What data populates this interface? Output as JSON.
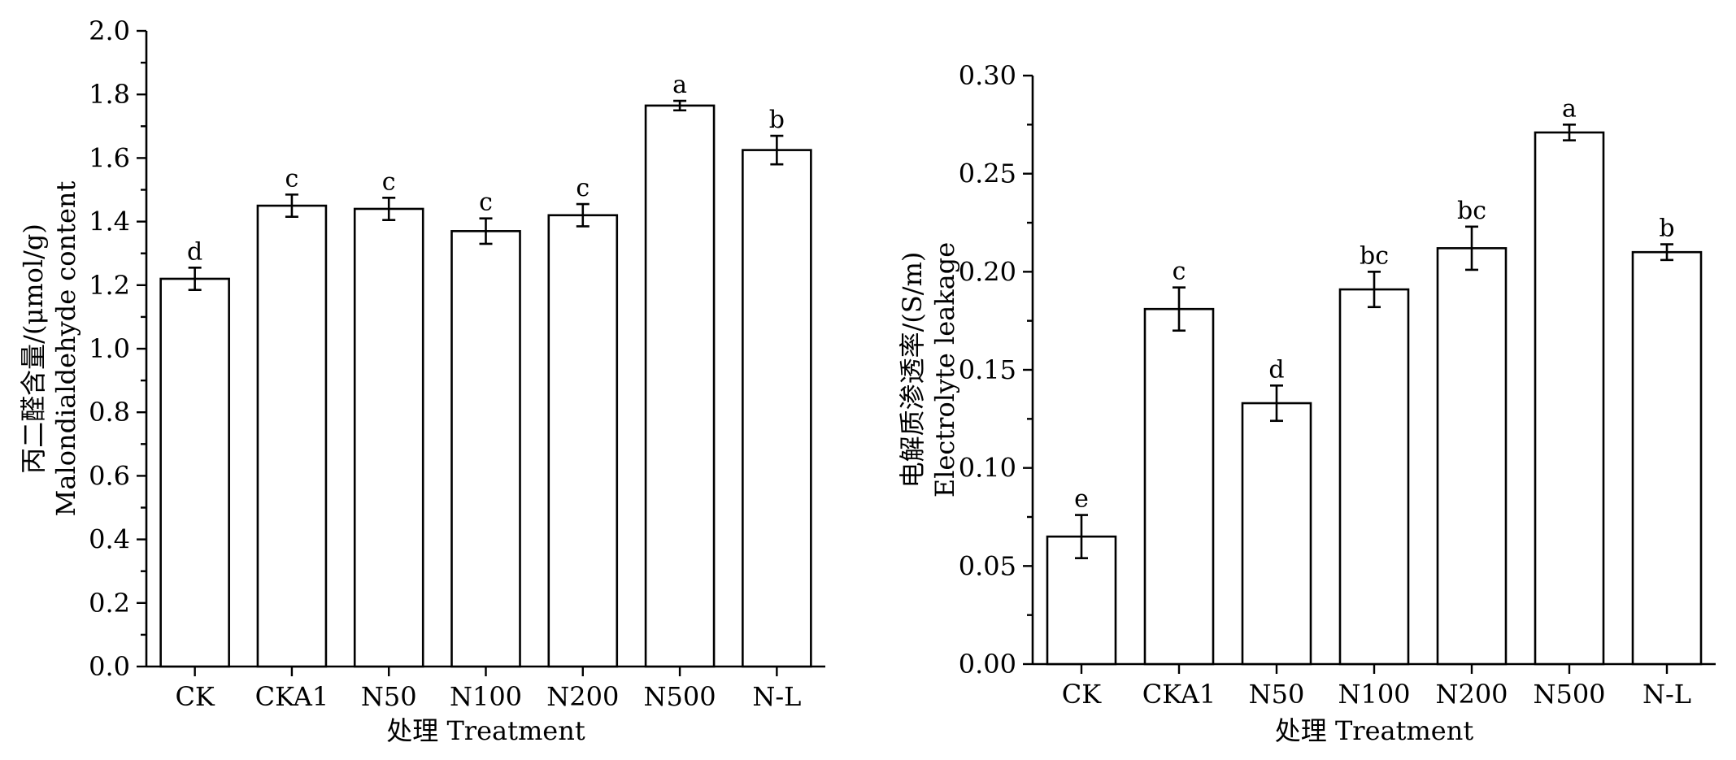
{
  "chart_data": [
    {
      "type": "bar",
      "categories": [
        "CK",
        "CKA1",
        "N50",
        "N100",
        "N200",
        "N500",
        "N-L"
      ],
      "values": [
        1.22,
        1.45,
        1.44,
        1.37,
        1.42,
        1.765,
        1.625
      ],
      "errors": [
        0.035,
        0.035,
        0.035,
        0.04,
        0.035,
        0.015,
        0.045
      ],
      "labels": [
        "d",
        "c",
        "c",
        "c",
        "c",
        "a",
        "b"
      ],
      "ylabel_lines": [
        "丙二醛含量/(μmol/g)",
        "Malondialdehyde content"
      ],
      "xlabel": "处理 Treatment",
      "ylim": [
        0,
        2.0
      ],
      "yticks": [
        "0.0",
        "0.2",
        "0.4",
        "0.6",
        "0.8",
        "1.0",
        "1.2",
        "1.4",
        "1.6",
        "1.8",
        "2.0"
      ],
      "grid": false
    },
    {
      "type": "bar",
      "categories": [
        "CK",
        "CKA1",
        "N50",
        "N100",
        "N200",
        "N500",
        "N-L"
      ],
      "values": [
        0.065,
        0.181,
        0.133,
        0.191,
        0.212,
        0.271,
        0.21
      ],
      "errors": [
        0.011,
        0.011,
        0.009,
        0.009,
        0.011,
        0.004,
        0.004
      ],
      "labels": [
        "e",
        "c",
        "d",
        "bc",
        "bc",
        "a",
        "b"
      ],
      "ylabel_lines": [
        "电解质渗透率/(S/m)",
        "Electrolyte leakage"
      ],
      "xlabel": "处理 Treatment",
      "ylim": [
        0,
        0.3
      ],
      "yticks": [
        "0.00",
        "0.05",
        "0.10",
        "0.15",
        "0.20",
        "0.25",
        "0.30"
      ],
      "grid": false
    }
  ]
}
